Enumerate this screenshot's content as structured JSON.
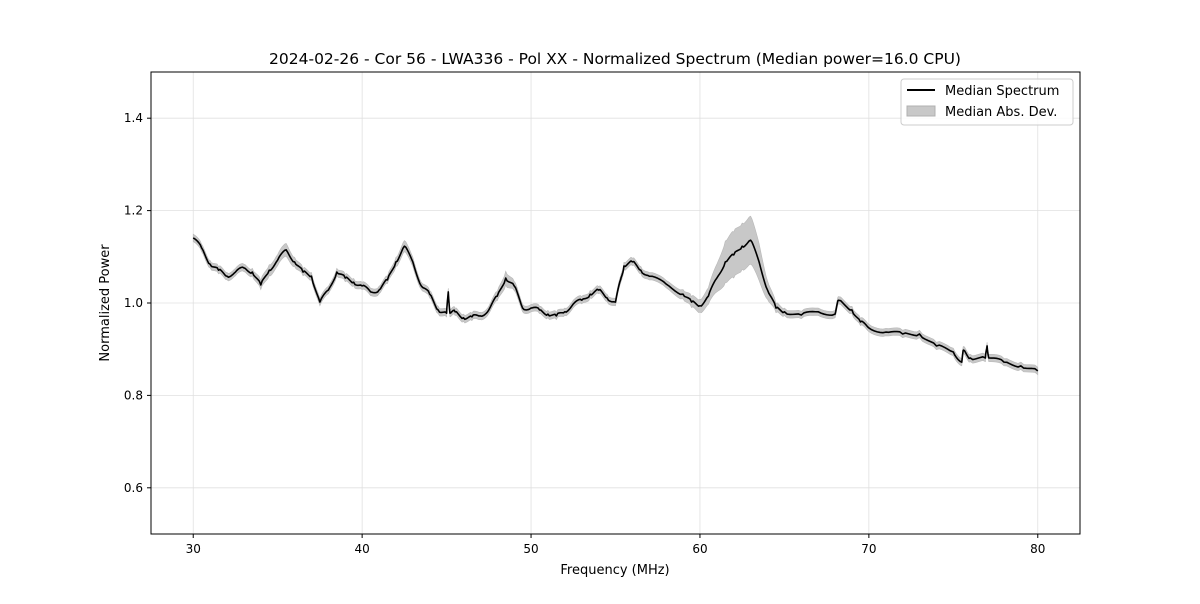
{
  "chart_data": {
    "type": "line",
    "title": "2024-02-26 - Cor 56 - LWA336 - Pol XX - Normalized Spectrum (Median power=16.0 CPU)",
    "xlabel": "Frequency (MHz)",
    "ylabel": "Normalized Power",
    "xlim": [
      27.5,
      82.5
    ],
    "ylim": [
      0.5,
      1.5
    ],
    "xticks": [
      30,
      40,
      50,
      60,
      70,
      80
    ],
    "xtick_labels": [
      "30",
      "40",
      "50",
      "60",
      "70",
      "80"
    ],
    "yticks": [
      0.6,
      0.8,
      1.0,
      1.2,
      1.4
    ],
    "ytick_labels": [
      "0.6",
      "0.8",
      "1.0",
      "1.2",
      "1.4"
    ],
    "grid": true,
    "legend_placement": "top-right",
    "legend": [
      {
        "label": "Median Spectrum",
        "kind": "line",
        "color": "#000000"
      },
      {
        "label": "Median Abs. Dev.",
        "kind": "patch",
        "color": "#c8c8c8"
      }
    ],
    "series": [
      {
        "name": "Median Spectrum",
        "x": [
          30,
          30.5,
          31,
          31.5,
          32,
          32.5,
          33,
          33.5,
          34,
          34.5,
          35,
          35.5,
          36,
          36.5,
          37,
          37.5,
          38,
          38.5,
          39,
          39.5,
          40,
          40.5,
          41,
          41.5,
          42,
          42.5,
          43,
          43.5,
          44,
          44.5,
          45,
          45.1,
          45.2,
          45.5,
          46,
          46.5,
          47,
          47.5,
          48,
          48.5,
          49,
          49.5,
          50,
          50.5,
          51,
          51.5,
          52,
          52.5,
          53,
          53.5,
          54,
          54.5,
          55,
          55.3,
          55.5,
          56,
          56.5,
          57,
          58,
          59,
          59.5,
          60,
          60.5,
          61,
          61.5,
          62,
          62.5,
          63,
          63.5,
          64,
          64.5,
          65,
          66,
          67,
          68,
          68.2,
          69,
          69.5,
          70,
          71,
          72,
          73,
          74,
          75,
          75.5,
          75.6,
          76,
          76.9,
          77,
          77.1,
          78,
          79,
          80
        ],
        "y": [
          1.141,
          1.119,
          1.084,
          1.071,
          1.058,
          1.067,
          1.076,
          1.067,
          1.039,
          1.071,
          1.093,
          1.115,
          1.089,
          1.067,
          1.058,
          1.002,
          1.028,
          1.067,
          1.054,
          1.045,
          1.037,
          1.024,
          1.028,
          1.05,
          1.089,
          1.123,
          1.089,
          1.037,
          1.019,
          0.985,
          0.978,
          1.024,
          0.978,
          0.981,
          0.968,
          0.97,
          0.972,
          0.985,
          1.015,
          1.054,
          1.037,
          0.989,
          0.989,
          0.985,
          0.976,
          0.972,
          0.981,
          0.998,
          1.006,
          1.019,
          1.028,
          1.011,
          1.002,
          1.05,
          1.08,
          1.089,
          1.071,
          1.058,
          1.041,
          1.019,
          1.002,
          0.994,
          1.015,
          1.054,
          1.089,
          1.104,
          1.123,
          1.136,
          1.089,
          1.028,
          0.989,
          0.981,
          0.974,
          0.981,
          0.976,
          1.006,
          0.985,
          0.959,
          0.946,
          0.937,
          0.933,
          0.933,
          0.907,
          0.894,
          0.872,
          0.898,
          0.881,
          0.881,
          0.907,
          0.881,
          0.872,
          0.864,
          0.853
        ],
        "color": "#000000"
      },
      {
        "name": "Median Abs. Dev.",
        "x_same_as": "Median Spectrum",
        "dev": [
          0.008,
          0.008,
          0.008,
          0.008,
          0.008,
          0.008,
          0.008,
          0.008,
          0.01,
          0.012,
          0.012,
          0.014,
          0.01,
          0.008,
          0.008,
          0.008,
          0.008,
          0.008,
          0.008,
          0.008,
          0.008,
          0.008,
          0.008,
          0.008,
          0.01,
          0.012,
          0.01,
          0.008,
          0.008,
          0.008,
          0.008,
          0.008,
          0.008,
          0.008,
          0.008,
          0.008,
          0.008,
          0.008,
          0.01,
          0.015,
          0.01,
          0.008,
          0.008,
          0.008,
          0.008,
          0.008,
          0.008,
          0.008,
          0.008,
          0.008,
          0.008,
          0.008,
          0.008,
          0.008,
          0.008,
          0.008,
          0.008,
          0.008,
          0.008,
          0.01,
          0.012,
          0.014,
          0.018,
          0.03,
          0.045,
          0.05,
          0.05,
          0.052,
          0.04,
          0.02,
          0.01,
          0.008,
          0.008,
          0.008,
          0.008,
          0.008,
          0.008,
          0.008,
          0.008,
          0.008,
          0.008,
          0.008,
          0.008,
          0.008,
          0.008,
          0.008,
          0.008,
          0.008,
          0.008,
          0.008,
          0.008,
          0.008,
          0.008
        ],
        "color": "#c8c8c8"
      }
    ]
  }
}
